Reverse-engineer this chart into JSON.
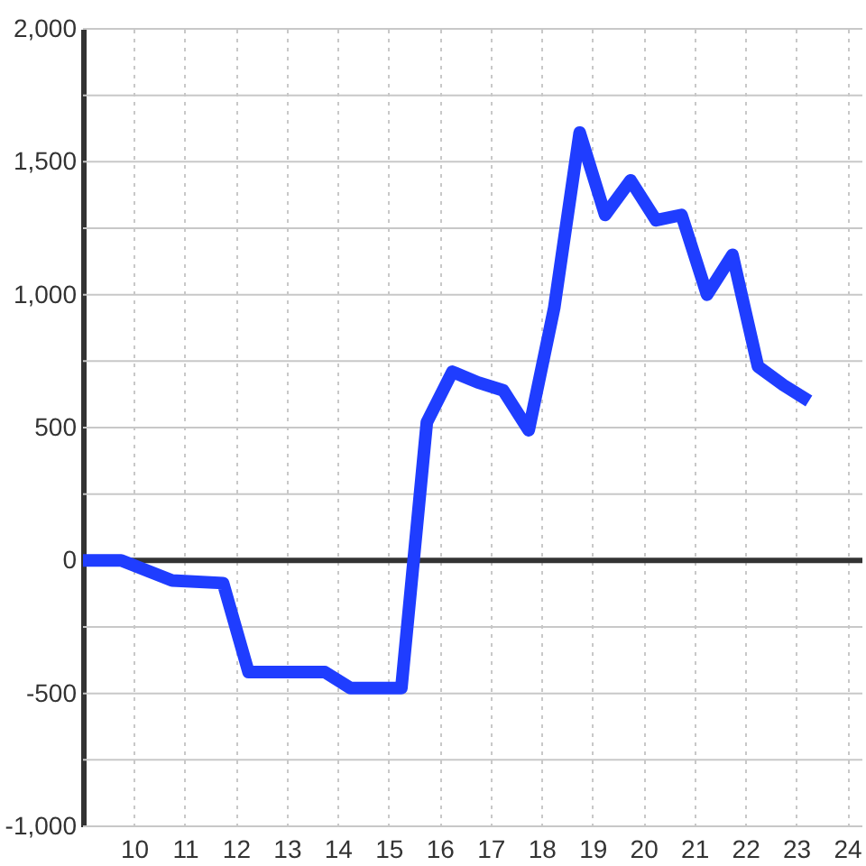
{
  "chart_data": {
    "type": "line",
    "x": [
      9,
      9.75,
      10.75,
      11.75,
      12.25,
      13.75,
      14.25,
      15.25,
      15.75,
      16.25,
      16.75,
      17.25,
      17.75,
      18.25,
      18.75,
      19.25,
      19.75,
      20.25,
      20.75,
      21.25,
      21.75,
      22.25,
      22.75,
      23.25
    ],
    "series": [
      {
        "color": "#1f3dff",
        "values": [
          0,
          0,
          -75,
          -85,
          -420,
          -420,
          -480,
          -480,
          520,
          710,
          670,
          640,
          490,
          950,
          1610,
          1300,
          1430,
          1280,
          1300,
          1000,
          1150,
          730,
          660,
          600
        ]
      }
    ],
    "xlim": [
      9,
      24.3
    ],
    "xticks": [
      10,
      11,
      12,
      13,
      14,
      15,
      16,
      17,
      18,
      19,
      20,
      21,
      22,
      23,
      24
    ],
    "ylim": [
      -1000,
      2000
    ],
    "yticks": [
      {
        "value": -1000,
        "label": "-1,000"
      },
      {
        "value": -750,
        "label": null
      },
      -500,
      {
        "value": -250,
        "label": null
      },
      0,
      {
        "value": 250,
        "label": null
      },
      500,
      {
        "value": 750,
        "label": null
      },
      {
        "value": 1000,
        "label": "1,000"
      },
      {
        "value": 1250,
        "label": null
      },
      {
        "value": 1500,
        "label": "1,500"
      },
      {
        "value": 1750,
        "label": null
      },
      {
        "value": 2000,
        "label": "2,000"
      }
    ],
    "grid": true,
    "line_style": "solid",
    "ref_lines": [
      {
        "axis": "y",
        "value": 0,
        "color": "#333333"
      }
    ]
  }
}
